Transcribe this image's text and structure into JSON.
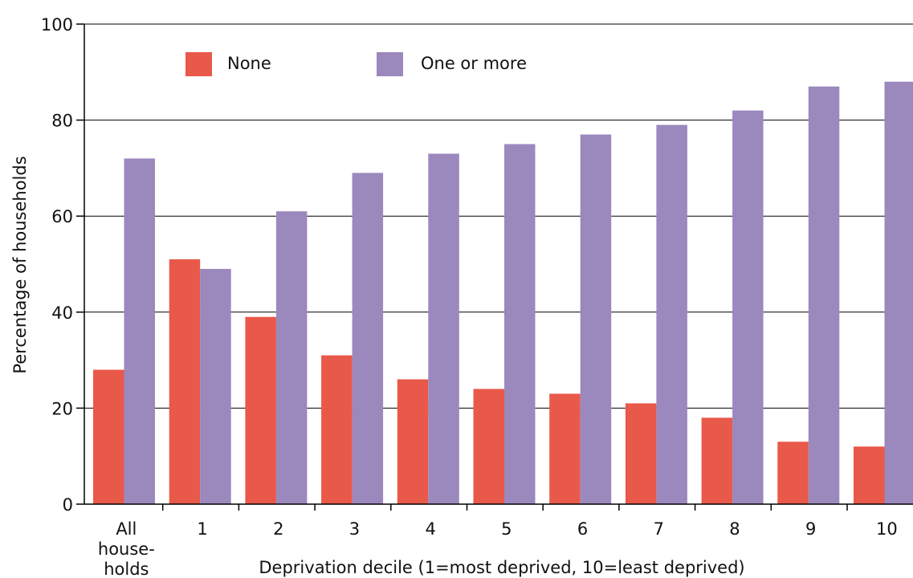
{
  "chart_data": {
    "type": "bar",
    "xlabel": "Deprivation decile (1=most deprived, 10=least deprived)",
    "ylabel": "Percentage of households",
    "ylim": [
      0,
      100
    ],
    "yticks": [
      "0",
      "20",
      "40",
      "60",
      "80",
      "100"
    ],
    "grid": true,
    "legend_position": "top-left",
    "categories": [
      "All households",
      "1",
      "2",
      "3",
      "4",
      "5",
      "6",
      "7",
      "8",
      "9",
      "10"
    ],
    "category_label_lines": [
      [
        "All",
        "house-",
        "holds"
      ],
      [
        "1"
      ],
      [
        "2"
      ],
      [
        "3"
      ],
      [
        "4"
      ],
      [
        "5"
      ],
      [
        "6"
      ],
      [
        "7"
      ],
      [
        "8"
      ],
      [
        "9"
      ],
      [
        "10"
      ]
    ],
    "series": [
      {
        "name": "None",
        "color": "#e8594a",
        "values": [
          28,
          51,
          39,
          31,
          26,
          24,
          23,
          21,
          18,
          13,
          12
        ]
      },
      {
        "name": "One or more",
        "color": "#9b88bd",
        "values": [
          72,
          49,
          61,
          69,
          73,
          75,
          77,
          79,
          82,
          87,
          88
        ]
      }
    ]
  }
}
